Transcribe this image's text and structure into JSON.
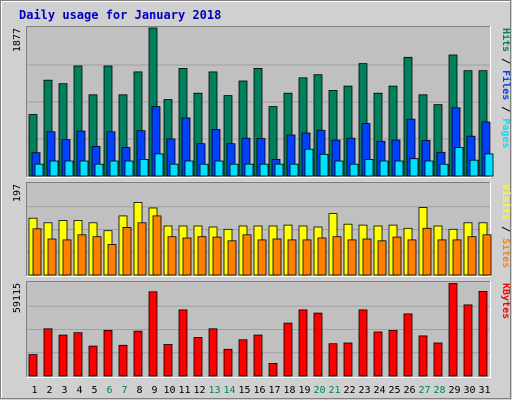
{
  "colors": {
    "hits": "#00805C",
    "files": "#0040FF",
    "pages": "#00E0FF",
    "visits": "#FFFF00",
    "sites": "#FF8000",
    "kbytes": "#FF0000",
    "title": "#0000C0",
    "weekend": "#00805C",
    "weekday": "#000000",
    "background": "#C0C0C0",
    "outer": "#D0D0D0"
  },
  "chart_data": {
    "type": "bar",
    "title": "Daily usage for January 2018",
    "categories": [
      "1",
      "2",
      "3",
      "4",
      "5",
      "6",
      "7",
      "8",
      "9",
      "10",
      "11",
      "12",
      "13",
      "14",
      "15",
      "16",
      "17",
      "18",
      "19",
      "20",
      "21",
      "22",
      "23",
      "24",
      "25",
      "26",
      "27",
      "28",
      "29",
      "30",
      "31"
    ],
    "weekend_days": [
      "6",
      "7",
      "13",
      "14",
      "20",
      "21",
      "27",
      "28"
    ],
    "panels": [
      {
        "scale_label": "1877",
        "ylim": [
          0,
          1877
        ],
        "right_labels": [
          {
            "text": "Hits",
            "color_key": "hits"
          },
          {
            "text": " / ",
            "color_key": "divider"
          },
          {
            "text": "Files",
            "color_key": "files"
          },
          {
            "text": " / ",
            "color_key": "divider"
          },
          {
            "text": "Pages",
            "color_key": "pages"
          }
        ],
        "series": [
          {
            "name": "Hits",
            "color_key": "hits",
            "values": [
              780,
              1215,
              1170,
              1395,
              1030,
              1395,
              1030,
              1320,
              1877,
              970,
              1365,
              1050,
              1320,
              1020,
              1205,
              1365,
              880,
              1050,
              1245,
              1285,
              1085,
              1140,
              1425,
              1050,
              1140,
              1505,
              1030,
              905,
              1535,
              1335,
              1335
            ]
          },
          {
            "name": "Files",
            "color_key": "files",
            "values": [
              295,
              560,
              460,
              570,
              375,
              560,
              360,
              575,
              880,
              470,
              735,
              410,
              590,
              410,
              480,
              475,
              210,
              520,
              545,
              580,
              455,
              480,
              665,
              440,
              455,
              720,
              450,
              300,
              865,
              505,
              685
            ]
          },
          {
            "name": "Pages",
            "color_key": "pages",
            "values": [
              150,
              190,
              190,
              190,
              150,
              190,
              190,
              210,
              280,
              150,
              190,
              150,
              190,
              150,
              150,
              150,
              150,
              150,
              340,
              275,
              190,
              150,
              210,
              190,
              190,
              220,
              190,
              150,
              360,
              200,
              280
            ]
          }
        ]
      },
      {
        "scale_label": "197",
        "ylim": [
          0,
          197
        ],
        "right_labels": [
          {
            "text": "Visits",
            "color_key": "visits"
          },
          {
            "text": " / ",
            "color_key": "divider"
          },
          {
            "text": "Sites",
            "color_key": "sites"
          }
        ],
        "series": [
          {
            "name": "Visits",
            "color_key": "visits",
            "values": [
              123,
              113,
              118,
              118,
              113,
              96,
              128,
              157,
              145,
              106,
              106,
              106,
              104,
              99,
              106,
              106,
              106,
              108,
              106,
              104,
              133,
              110,
              108,
              106,
              108,
              101,
              146,
              106,
              99,
              113,
              113
            ]
          },
          {
            "name": "Sites",
            "color_key": "sites",
            "values": [
              100,
              78,
              76,
              87,
              83,
              66,
              103,
              113,
              128,
              83,
              80,
              83,
              82,
              74,
              87,
              76,
              78,
              76,
              76,
              80,
              83,
              76,
              78,
              74,
              82,
              76,
              101,
              76,
              76,
              83,
              87
            ]
          }
        ]
      },
      {
        "scale_label": "59115",
        "ylim": [
          0,
          59115
        ],
        "right_labels": [
          {
            "text": "KBytes",
            "color_key": "kbytes"
          }
        ],
        "series": [
          {
            "name": "KBytes",
            "color_key": "kbytes",
            "values": [
              13600,
              30000,
              26000,
              27500,
              19000,
              29000,
              19500,
              28500,
              53500,
              20000,
              42000,
              24500,
              30000,
              17000,
              23000,
              26000,
              8000,
              33600,
              42000,
              40000,
              20500,
              21000,
              42000,
              28000,
              29000,
              39500,
              25500,
              21000,
              58800,
              45200,
              53800
            ]
          }
        ]
      }
    ]
  }
}
